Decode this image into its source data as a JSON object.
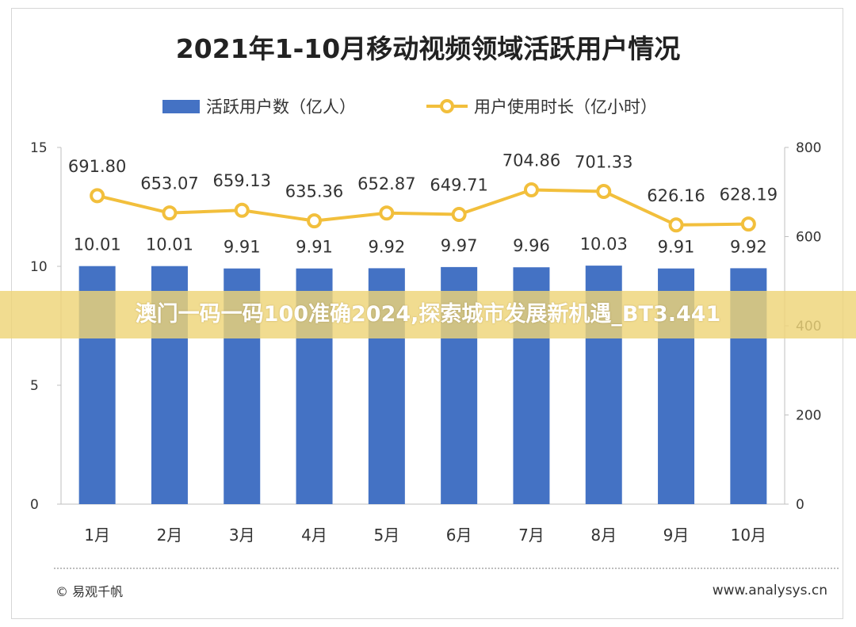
{
  "chart_data": {
    "type": "bar+line",
    "title": "2021年1-10月移动视频领域活跃用户情况",
    "categories": [
      "1月",
      "2月",
      "3月",
      "4月",
      "5月",
      "6月",
      "7月",
      "8月",
      "9月",
      "10月"
    ],
    "series": [
      {
        "name": "活跃用户数（亿人）",
        "type": "bar",
        "axis": "left",
        "values": [
          10.01,
          10.01,
          9.91,
          9.91,
          9.92,
          9.97,
          9.96,
          10.03,
          9.91,
          9.92
        ],
        "labels": [
          "10.01",
          "10.01",
          "9.91",
          "9.91",
          "9.92",
          "9.97",
          "9.96",
          "10.03",
          "9.91",
          "9.92"
        ]
      },
      {
        "name": "用户使用时长（亿小时）",
        "type": "line",
        "axis": "right",
        "values": [
          691.8,
          653.07,
          659.13,
          635.36,
          652.87,
          649.71,
          704.86,
          701.33,
          626.16,
          628.19
        ],
        "labels": [
          "691.80",
          "653.07",
          "659.13",
          "635.36",
          "652.87",
          "649.71",
          "704.86",
          "701.33",
          "626.16",
          "628.19"
        ]
      }
    ],
    "left_axis": {
      "min": 0,
      "max": 15,
      "ticks": [
        "0",
        "5",
        "10",
        "15"
      ],
      "tick_values": [
        0,
        5,
        10,
        15
      ]
    },
    "right_axis": {
      "min": 0,
      "max": 800,
      "ticks": [
        "0",
        "200",
        "400",
        "600",
        "800"
      ],
      "tick_values": [
        0,
        200,
        400,
        600,
        800
      ]
    },
    "legend_position": "top-center",
    "grid": false,
    "colors": {
      "bar": "#4472c4",
      "line": "#f2bf3c"
    }
  },
  "banner": {
    "text": "澳门一码一码100准确2024,探索城市发展新机遇_BT3.441"
  },
  "footer": {
    "source": "© 易观千帆",
    "website": "www.analysys.cn"
  }
}
